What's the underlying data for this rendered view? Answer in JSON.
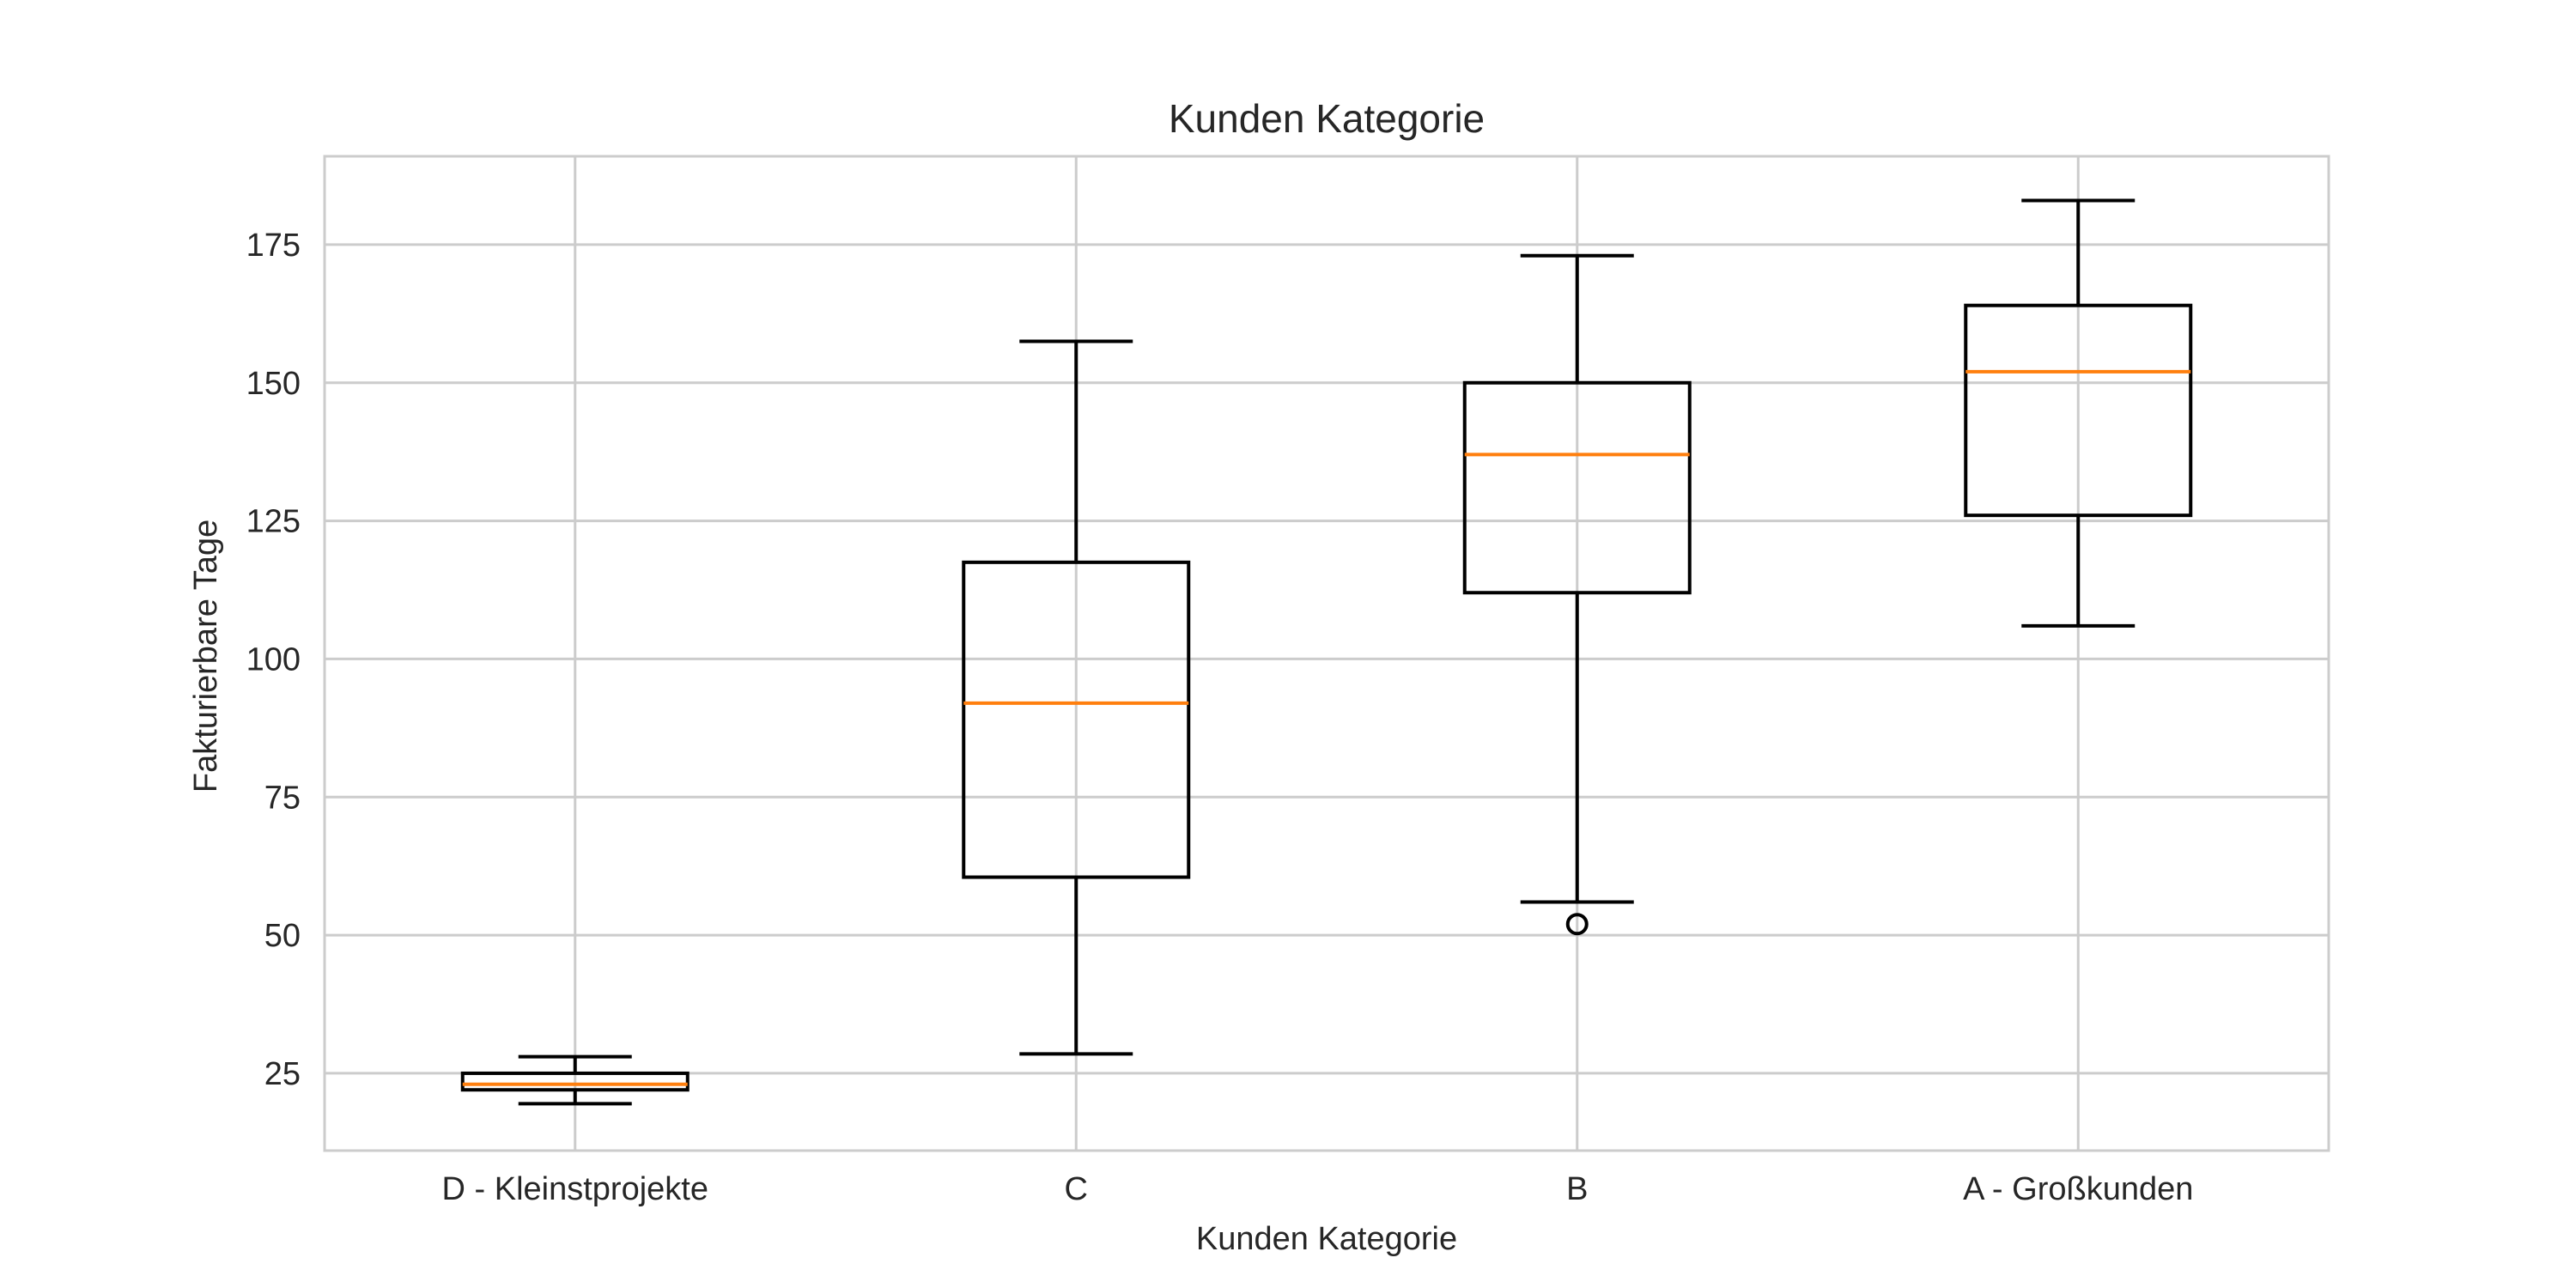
{
  "chart_data": {
    "type": "boxplot",
    "title": "Kunden Kategorie",
    "xlabel": "Kunden Kategorie",
    "ylabel": "Fakturierbare Tage",
    "ylim": [
      11,
      191
    ],
    "yticks": [
      25,
      50,
      75,
      100,
      125,
      150,
      175
    ],
    "grid": true,
    "categories": [
      "D - Kleinstprojekte",
      "C",
      "B",
      "A - Großkunden"
    ],
    "boxes": [
      {
        "category": "D - Kleinstprojekte",
        "whisker_low": 19.5,
        "q1": 22.0,
        "median": 23.0,
        "q3": 25.0,
        "whisker_high": 28.0,
        "outliers": []
      },
      {
        "category": "C",
        "whisker_low": 28.5,
        "q1": 60.5,
        "median": 92.0,
        "q3": 117.5,
        "whisker_high": 157.5,
        "outliers": []
      },
      {
        "category": "B",
        "whisker_low": 56.0,
        "q1": 112.0,
        "median": 137.0,
        "q3": 150.0,
        "whisker_high": 173.0,
        "outliers": [
          52.0
        ]
      },
      {
        "category": "A - Großkunden",
        "whisker_low": 106.0,
        "q1": 126.0,
        "median": 152.0,
        "q3": 164.0,
        "whisker_high": 183.0,
        "outliers": []
      }
    ],
    "colors": {
      "box": "#000000",
      "median": "#ff7f0e",
      "grid": "#cccccc",
      "frame": "#cccccc"
    }
  }
}
